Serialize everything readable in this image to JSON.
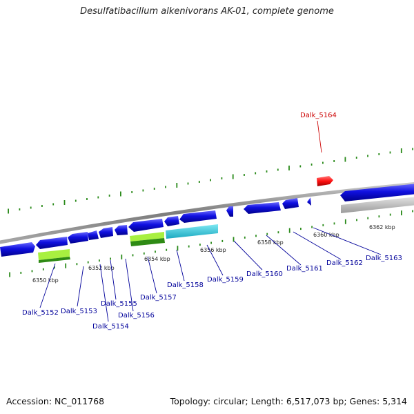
{
  "title": "Desulfatibacillum alkenivorans AK-01, complete genome",
  "footer": {
    "accession": "Accession: NC_011768",
    "summary": "Topology: circular; Length: 6,517,073 bp; Genes: 5,314"
  },
  "colors": {
    "gene_forward": "#0d0dd8",
    "gene_highlight": "#ff1010",
    "rna_light": "#a8f040",
    "rna_dark": "#2e8a14",
    "misc_cyan": "#33ccdd",
    "misc_gray": "#bcbcbc",
    "tick": "#2a8a1a",
    "backbone": "#8a8a8a",
    "label_normal": "#00009a",
    "label_highlight": "#cc0000"
  },
  "kbp_labels": [
    {
      "text": "6350 kbp"
    },
    {
      "text": "6352 kbp"
    },
    {
      "text": "6354 kbp"
    },
    {
      "text": "6356 kbp"
    },
    {
      "text": "6358 kbp"
    },
    {
      "text": "6360 kbp"
    },
    {
      "text": "6362 kbp"
    }
  ],
  "gene_labels": [
    {
      "text": "Dalk_5152",
      "highlight": false
    },
    {
      "text": "Dalk_5153",
      "highlight": false
    },
    {
      "text": "Dalk_5154",
      "highlight": false
    },
    {
      "text": "Dalk_5155",
      "highlight": false
    },
    {
      "text": "Dalk_5156",
      "highlight": false
    },
    {
      "text": "Dalk_5157",
      "highlight": false
    },
    {
      "text": "Dalk_5158",
      "highlight": false
    },
    {
      "text": "Dalk_5159",
      "highlight": false
    },
    {
      "text": "Dalk_5160",
      "highlight": false
    },
    {
      "text": "Dalk_5161",
      "highlight": false
    },
    {
      "text": "Dalk_5162",
      "highlight": false
    },
    {
      "text": "Dalk_5163",
      "highlight": false
    },
    {
      "text": "Dalk_5164",
      "highlight": true
    }
  ]
}
